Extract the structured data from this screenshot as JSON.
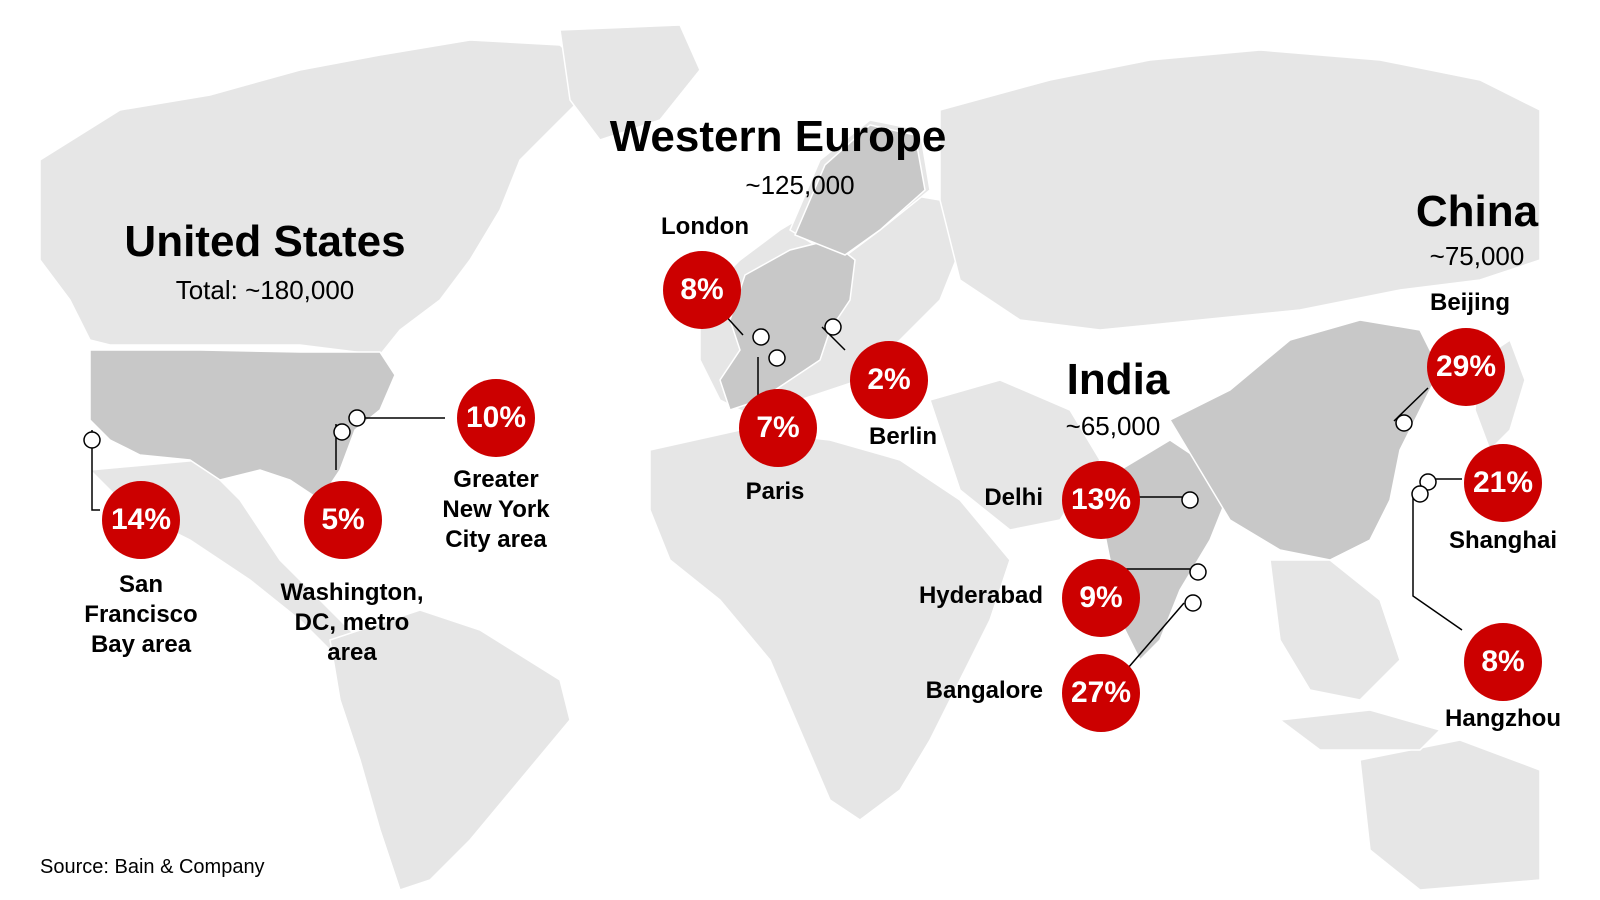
{
  "map": {
    "land_color": "#e6e6e6",
    "highlight_color": "#c8c8c8",
    "bubble_color": "#cc0000"
  },
  "regions": {
    "us": {
      "title": "United States",
      "total": "Total: ~180,000"
    },
    "europe": {
      "title": "Western Europe",
      "total": "~125,000"
    },
    "india": {
      "title": "India",
      "total": "~65,000"
    },
    "china": {
      "title": "China",
      "total": "~75,000"
    }
  },
  "cities": [
    {
      "name": "San\nFrancisco\nBay area",
      "share": "14%"
    },
    {
      "name": "Washington,\nDC, metro\narea",
      "share": "5%"
    },
    {
      "name": "Greater\nNew York\nCity area",
      "share": "10%"
    },
    {
      "name": "London",
      "share": "8%"
    },
    {
      "name": "Paris",
      "share": "7%"
    },
    {
      "name": "Berlin",
      "share": "2%"
    },
    {
      "name": "Delhi",
      "share": "13%"
    },
    {
      "name": "Hyderabad",
      "share": "9%"
    },
    {
      "name": "Bangalore",
      "share": "27%"
    },
    {
      "name": "Beijing",
      "share": "29%"
    },
    {
      "name": "Shanghai",
      "share": "21%"
    },
    {
      "name": "Hangzhou",
      "share": "8%"
    }
  ],
  "source": "Source: Bain & Company"
}
